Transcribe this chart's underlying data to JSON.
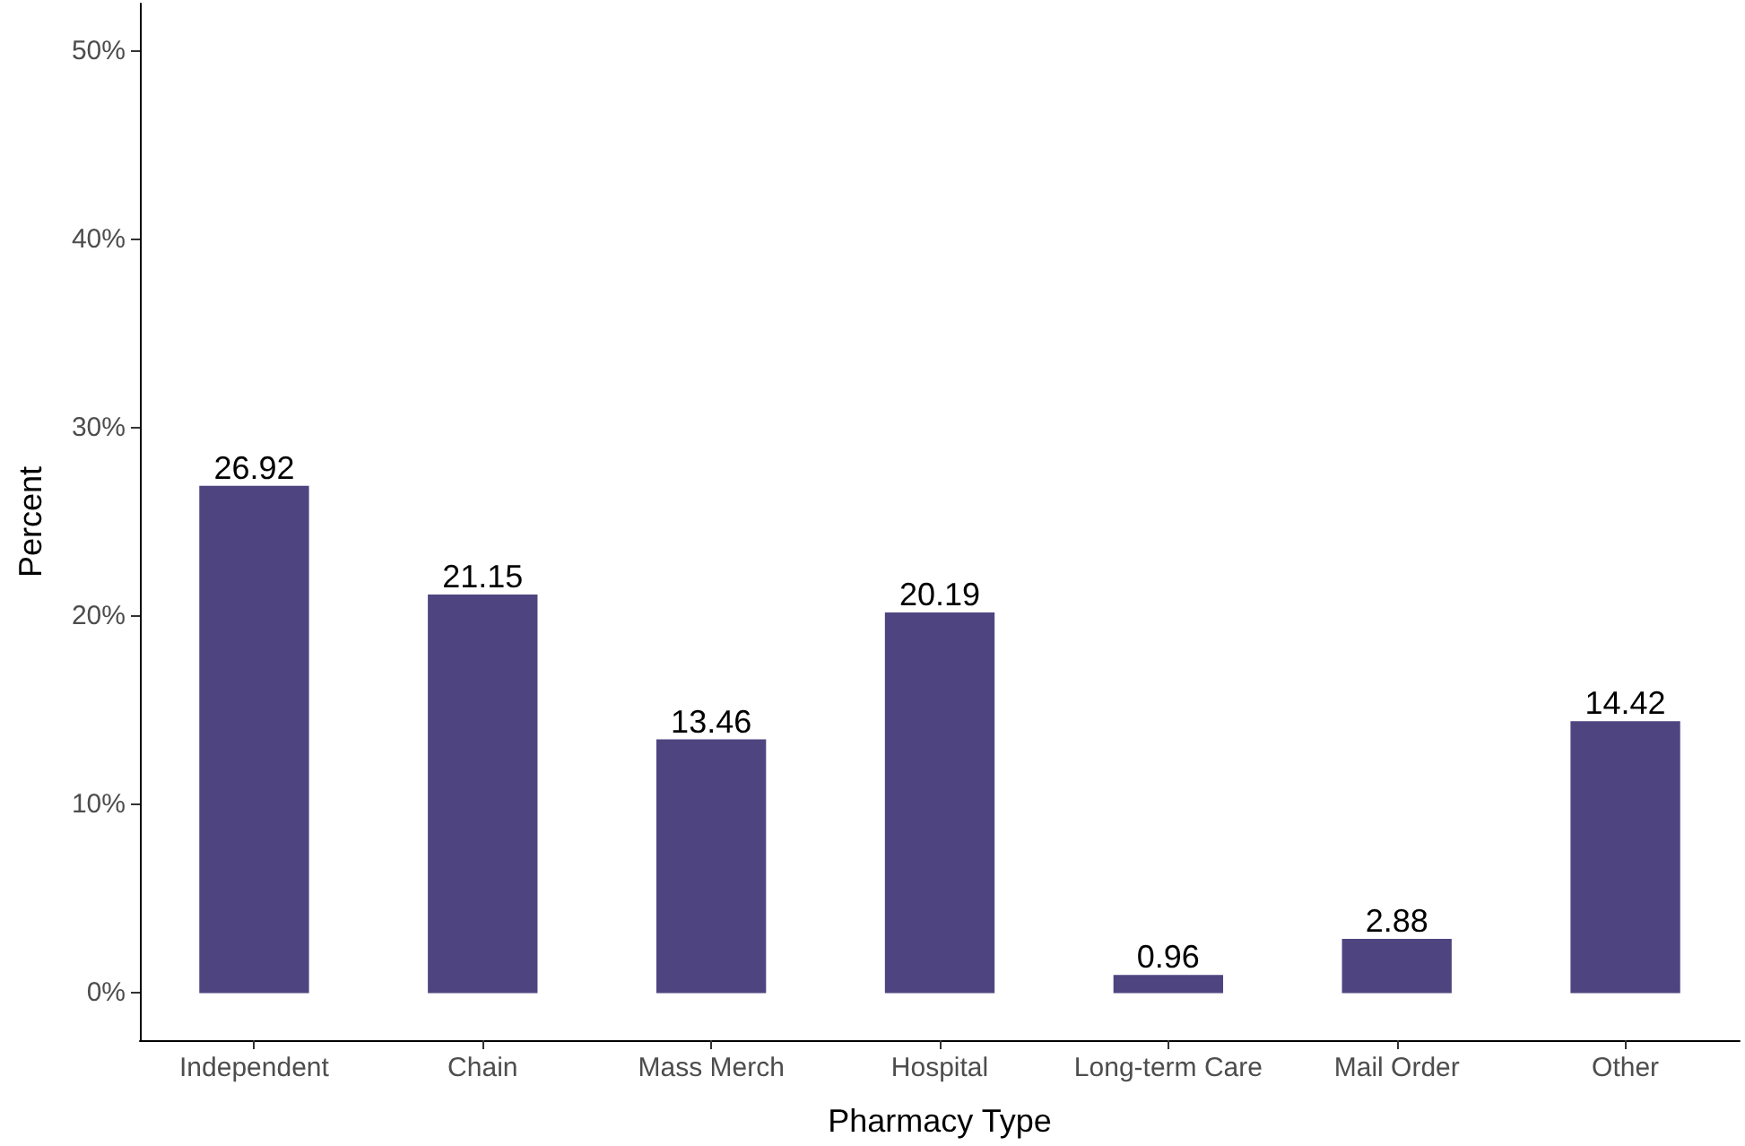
{
  "chart_data": {
    "type": "bar",
    "xlabel": "Pharmacy Type",
    "ylabel": "Percent",
    "categories": [
      "Independent",
      "Chain",
      "Mass Merch",
      "Hospital",
      "Long-term Care",
      "Mail Order",
      "Other"
    ],
    "values": [
      26.92,
      21.15,
      13.46,
      20.19,
      0.96,
      2.88,
      14.42
    ],
    "color": "#4e4580",
    "ylim": [
      -2.5,
      52.5
    ],
    "yticks": [
      {
        "value": 0,
        "label": "0%"
      },
      {
        "value": 10,
        "label": "10%"
      },
      {
        "value": 20,
        "label": "20%"
      },
      {
        "value": 30,
        "label": "30%"
      },
      {
        "value": 40,
        "label": "40%"
      },
      {
        "value": 50,
        "label": "50%"
      }
    ],
    "data_labels": true,
    "grid": false
  }
}
